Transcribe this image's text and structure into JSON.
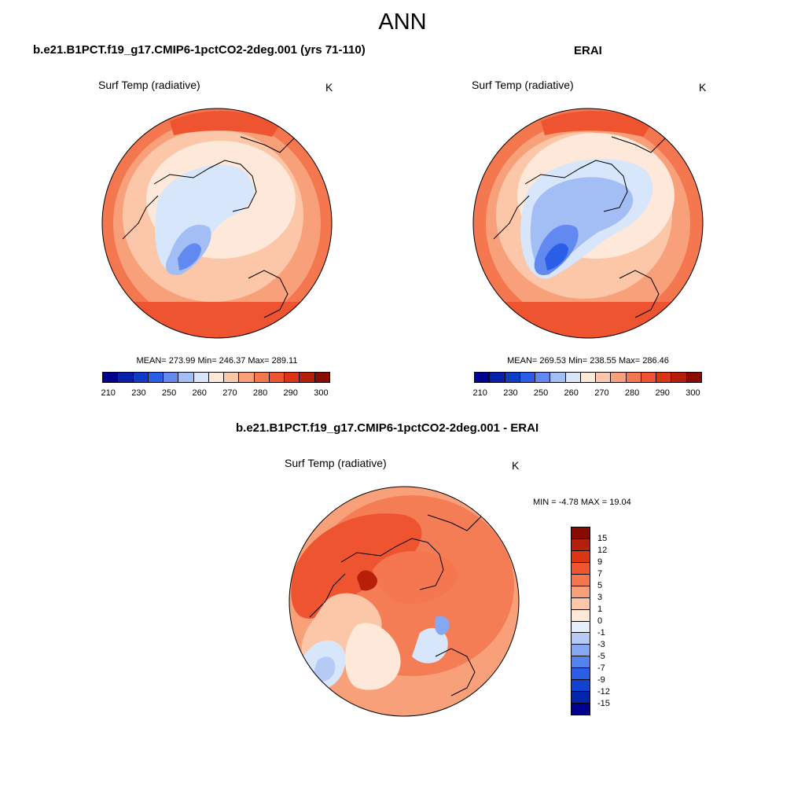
{
  "main_title": "ANN",
  "panels": [
    {
      "title": "b.e21.B1PCT.f19_g17.CMIP6-1pctCO2-2deg.001 (yrs 71-110)",
      "variable": "Surf Temp (radiative)",
      "units": "K",
      "stats": "MEAN= 273.99  Min= 246.37  Max= 289.11"
    },
    {
      "title": "ERAI",
      "variable": "Surf Temp (radiative)",
      "units": "K",
      "stats": "MEAN= 269.53  Min= 238.55  Max= 286.46"
    },
    {
      "title": "b.e21.B1PCT.f19_g17.CMIP6-1pctCO2-2deg.001 - ERAI",
      "variable": "Surf Temp (radiative)",
      "units": "K",
      "stats": "MIN =  -4.78 MAX =  19.04"
    }
  ],
  "colorbar_abs": {
    "colors": [
      "#00008f",
      "#0720a8",
      "#0f3cc4",
      "#2a5ee6",
      "#6189f0",
      "#a3bdf5",
      "#d7e6fb",
      "#fde8d9",
      "#fbc7a8",
      "#f8a07a",
      "#f4774f",
      "#ee5430",
      "#dc3516",
      "#b81f08",
      "#870b00"
    ],
    "tick_labels": [
      "210",
      "230",
      "250",
      "260",
      "270",
      "280",
      "290",
      "300"
    ]
  },
  "colorbar_diff": {
    "colors": [
      "#00008f",
      "#0424ab",
      "#1143d3",
      "#2a5ee6",
      "#5583ee",
      "#86a7f2",
      "#b5cbf6",
      "#e4eefc",
      "#fde8d9",
      "#fbc7a8",
      "#f8a07a",
      "#f4774f",
      "#ee5430",
      "#dc3516",
      "#b81f08",
      "#870b00"
    ],
    "tick_labels": [
      "-15",
      "-12",
      "-9",
      "-7",
      "-5",
      "-3",
      "-1",
      "0",
      "1",
      "3",
      "5",
      "7",
      "9",
      "12",
      "15"
    ]
  }
}
